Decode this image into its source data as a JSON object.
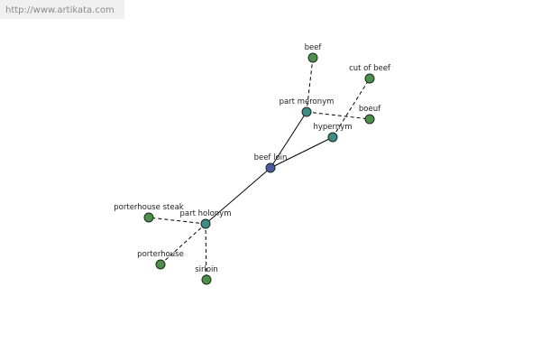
{
  "header": {
    "url": "http://www.artikata.com"
  },
  "nodes": [
    {
      "label": "beef loin"
    },
    {
      "label": "part meronym"
    },
    {
      "label": "hypernym"
    },
    {
      "label": "part holonym"
    },
    {
      "label": "beef"
    },
    {
      "label": "cut of beef"
    },
    {
      "label": "boeuf"
    },
    {
      "label": "porterhouse steak"
    },
    {
      "label": "porterhouse"
    },
    {
      "label": "sirloin"
    }
  ]
}
